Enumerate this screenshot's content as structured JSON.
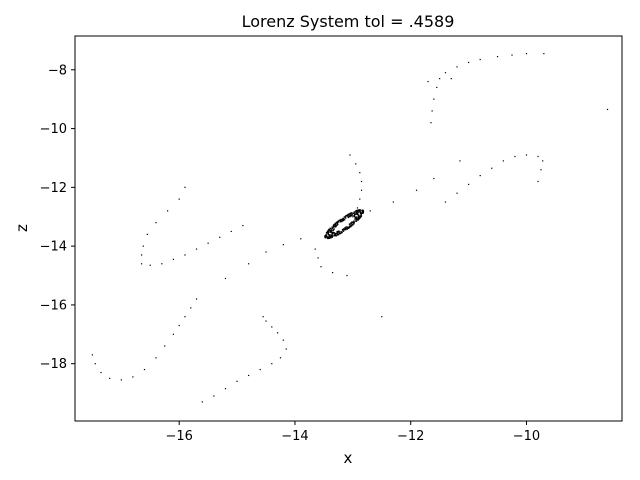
{
  "chart_data": {
    "type": "scatter",
    "title": "Lorenz System tol = .4589",
    "xlabel": "x",
    "ylabel": "z",
    "xlim": [
      -17.8,
      -8.35
    ],
    "ylim": [
      -19.95,
      -6.85
    ],
    "xticks": [
      -16,
      -14,
      -12,
      -10
    ],
    "yticks": [
      -18,
      -16,
      -14,
      -12,
      -10,
      -8
    ],
    "xtick_labels": [
      "−16",
      "−14",
      "−12",
      "−10"
    ],
    "ytick_labels": [
      "−18",
      "−16",
      "−14",
      "−12",
      "−10",
      "−8"
    ],
    "grid": false,
    "marker_color": "#000000",
    "series": [
      {
        "values": [
          [
            -11.55,
            -8.6
          ],
          [
            -11.5,
            -8.3
          ],
          [
            -11.4,
            -8.1
          ],
          [
            -11.2,
            -7.9
          ],
          [
            -11.0,
            -7.75
          ],
          [
            -10.8,
            -7.65
          ],
          [
            -10.5,
            -7.55
          ],
          [
            -10.25,
            -7.5
          ],
          [
            -10.0,
            -7.45
          ],
          [
            -9.7,
            -7.45
          ],
          [
            -11.6,
            -9.0
          ],
          [
            -11.63,
            -9.4
          ],
          [
            -11.65,
            -9.8
          ],
          [
            -11.7,
            -8.4
          ],
          [
            -11.3,
            -8.3
          ],
          [
            -8.6,
            -9.35
          ],
          [
            -9.8,
            -11.8
          ],
          [
            -9.75,
            -11.4
          ],
          [
            -9.72,
            -11.1
          ],
          [
            -9.8,
            -10.95
          ],
          [
            -10.0,
            -10.9
          ],
          [
            -10.2,
            -10.95
          ],
          [
            -10.4,
            -11.1
          ],
          [
            -10.6,
            -11.35
          ],
          [
            -10.8,
            -11.6
          ],
          [
            -11.0,
            -11.9
          ],
          [
            -11.2,
            -12.2
          ],
          [
            -11.4,
            -12.5
          ],
          [
            -11.15,
            -11.1
          ],
          [
            -11.6,
            -11.7
          ],
          [
            -11.9,
            -12.1
          ],
          [
            -12.3,
            -12.5
          ],
          [
            -12.7,
            -12.8
          ],
          [
            -13.0,
            -13.0
          ],
          [
            -13.05,
            -10.9
          ],
          [
            -12.95,
            -11.2
          ],
          [
            -12.88,
            -11.5
          ],
          [
            -12.85,
            -11.8
          ],
          [
            -12.85,
            -12.1
          ],
          [
            -12.88,
            -12.4
          ],
          [
            -12.92,
            -12.7
          ],
          [
            -15.9,
            -12.0
          ],
          [
            -16.0,
            -12.4
          ],
          [
            -16.2,
            -12.8
          ],
          [
            -16.4,
            -13.2
          ],
          [
            -16.55,
            -13.6
          ],
          [
            -16.62,
            -14.0
          ],
          [
            -16.65,
            -14.3
          ],
          [
            -16.65,
            -14.6
          ],
          [
            -16.5,
            -14.65
          ],
          [
            -16.3,
            -14.6
          ],
          [
            -16.1,
            -14.45
          ],
          [
            -15.9,
            -14.3
          ],
          [
            -15.7,
            -14.1
          ],
          [
            -15.5,
            -13.9
          ],
          [
            -15.3,
            -13.7
          ],
          [
            -15.1,
            -13.5
          ],
          [
            -14.9,
            -13.3
          ],
          [
            -15.2,
            -15.1
          ],
          [
            -14.8,
            -14.6
          ],
          [
            -14.5,
            -14.2
          ],
          [
            -14.2,
            -13.95
          ],
          [
            -13.9,
            -13.75
          ],
          [
            -13.65,
            -14.1
          ],
          [
            -13.6,
            -14.4
          ],
          [
            -13.55,
            -14.7
          ],
          [
            -13.35,
            -14.9
          ],
          [
            -13.1,
            -15.0
          ],
          [
            -15.7,
            -15.8
          ],
          [
            -15.8,
            -16.1
          ],
          [
            -15.9,
            -16.4
          ],
          [
            -16.0,
            -16.7
          ],
          [
            -16.1,
            -17.0
          ],
          [
            -16.25,
            -17.4
          ],
          [
            -16.4,
            -17.8
          ],
          [
            -16.6,
            -18.2
          ],
          [
            -16.8,
            -18.45
          ],
          [
            -17.0,
            -18.55
          ],
          [
            -17.2,
            -18.5
          ],
          [
            -17.35,
            -18.3
          ],
          [
            -17.45,
            -18.0
          ],
          [
            -17.5,
            -17.7
          ],
          [
            -15.6,
            -19.3
          ],
          [
            -15.4,
            -19.1
          ],
          [
            -15.2,
            -18.85
          ],
          [
            -15.0,
            -18.6
          ],
          [
            -14.8,
            -18.4
          ],
          [
            -14.6,
            -18.2
          ],
          [
            -14.4,
            -18.0
          ],
          [
            -14.25,
            -17.8
          ],
          [
            -14.15,
            -17.5
          ],
          [
            -14.2,
            -17.2
          ],
          [
            -14.3,
            -16.95
          ],
          [
            -14.4,
            -16.75
          ],
          [
            -14.5,
            -16.55
          ],
          [
            -14.55,
            -16.4
          ],
          [
            -12.5,
            -16.4
          ]
        ]
      }
    ],
    "attractor_cluster": {
      "center": [
        -13.15,
        -13.25
      ],
      "x_radius": 0.35,
      "z_radius": 0.45,
      "point_count": 260
    }
  }
}
